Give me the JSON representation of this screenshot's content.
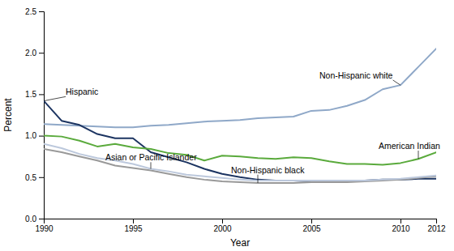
{
  "chart_data": {
    "type": "line",
    "x": [
      1990,
      1991,
      1992,
      1993,
      1994,
      1995,
      1996,
      1997,
      1998,
      1999,
      2000,
      2001,
      2002,
      2003,
      2004,
      2005,
      2006,
      2007,
      2008,
      2009,
      2010,
      2011,
      2012
    ],
    "series": [
      {
        "name": "Non-Hispanic white",
        "color": "#8fa8c8",
        "values": [
          1.14,
          1.13,
          1.12,
          1.11,
          1.1,
          1.1,
          1.12,
          1.13,
          1.15,
          1.17,
          1.18,
          1.19,
          1.21,
          1.22,
          1.23,
          1.3,
          1.31,
          1.36,
          1.43,
          1.56,
          1.61,
          1.83,
          2.05
        ]
      },
      {
        "name": "Hispanic",
        "color": "#1c3461",
        "values": [
          1.42,
          1.18,
          1.13,
          1.02,
          0.97,
          0.97,
          0.8,
          0.74,
          0.68,
          0.6,
          0.54,
          0.5,
          0.47,
          0.46,
          0.46,
          0.45,
          0.45,
          0.46,
          0.46,
          0.47,
          0.47,
          0.48,
          0.48
        ]
      },
      {
        "name": "American Indian",
        "color": "#5aaa3c",
        "values": [
          1.0,
          0.99,
          0.94,
          0.87,
          0.9,
          0.86,
          0.84,
          0.79,
          0.77,
          0.7,
          0.76,
          0.75,
          0.73,
          0.72,
          0.74,
          0.73,
          0.69,
          0.66,
          0.66,
          0.65,
          0.67,
          0.72,
          0.8
        ]
      },
      {
        "name": "Non-Hispanic black",
        "color": "#999999",
        "values": [
          0.84,
          0.8,
          0.75,
          0.7,
          0.64,
          0.61,
          0.58,
          0.54,
          0.5,
          0.47,
          0.45,
          0.44,
          0.43,
          0.43,
          0.43,
          0.44,
          0.44,
          0.44,
          0.45,
          0.46,
          0.47,
          0.49,
          0.51
        ]
      },
      {
        "name": "Asian or Pacific Islander",
        "color": "#bcc8dc",
        "values": [
          0.9,
          0.85,
          0.78,
          0.73,
          0.7,
          0.66,
          0.6,
          0.57,
          0.53,
          0.51,
          0.49,
          0.47,
          0.46,
          0.46,
          0.46,
          0.46,
          0.46,
          0.46,
          0.46,
          0.47,
          0.48,
          0.5,
          0.52
        ]
      }
    ],
    "xlabel": "Year",
    "ylabel": "Percent",
    "xlim": [
      1990,
      2012
    ],
    "ylim": [
      0.0,
      2.5
    ],
    "xticks": [
      1990,
      1995,
      2000,
      2005,
      2010,
      2012
    ],
    "yticks": [
      {
        "value": 0.0,
        "label": "0.0"
      },
      0.5,
      {
        "value": 1.0,
        "label": "1.0"
      },
      1.5,
      {
        "value": 2.0,
        "label": "2.0"
      },
      2.5
    ],
    "grid": false
  }
}
